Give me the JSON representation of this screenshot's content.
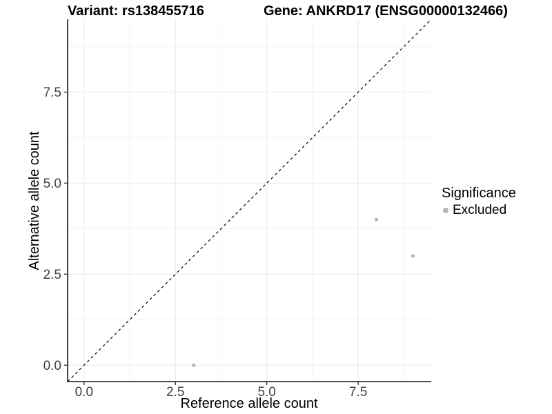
{
  "chart_data": {
    "type": "scatter",
    "title_left": "Variant: rs138455716",
    "title_right": "Gene: ANKRD17 (ENSG00000132466)",
    "xlabel": "Reference allele count",
    "ylabel": "Alternative allele count",
    "xlim": [
      -0.45,
      9.5
    ],
    "ylim": [
      -0.45,
      9.5
    ],
    "x_ticks": [
      0.0,
      2.5,
      5.0,
      7.5
    ],
    "y_ticks": [
      0.0,
      2.5,
      5.0,
      7.5
    ],
    "x_tick_labels": [
      "0.0",
      "2.5",
      "5.0",
      "7.5"
    ],
    "y_tick_labels": [
      "0.0",
      "2.5",
      "5.0",
      "7.5"
    ],
    "x_minor_ticks": [
      1.25,
      3.75,
      6.25,
      8.75
    ],
    "y_minor_ticks": [
      1.25,
      3.75,
      6.25,
      8.75
    ],
    "grid": true,
    "identity_line": {
      "style": "dashed",
      "color": "#000000"
    },
    "series": [
      {
        "name": "Excluded",
        "color": "#b5b5b5",
        "points": [
          {
            "x": 3,
            "y": 0
          },
          {
            "x": 8,
            "y": 4
          },
          {
            "x": 9,
            "y": 3
          }
        ]
      }
    ],
    "legend": {
      "title": "Significance",
      "position": "right",
      "items": [
        {
          "label": "Excluded",
          "color": "#b5b5b5"
        }
      ]
    },
    "style": {
      "point_color": "#b5b5b5",
      "grid_major_color": "#e9e9e9",
      "grid_minor_color": "#f3f3f3",
      "axis_line_color": "#333333",
      "tick_label_color": "#404040",
      "dashed_line_color": "#000000"
    }
  }
}
